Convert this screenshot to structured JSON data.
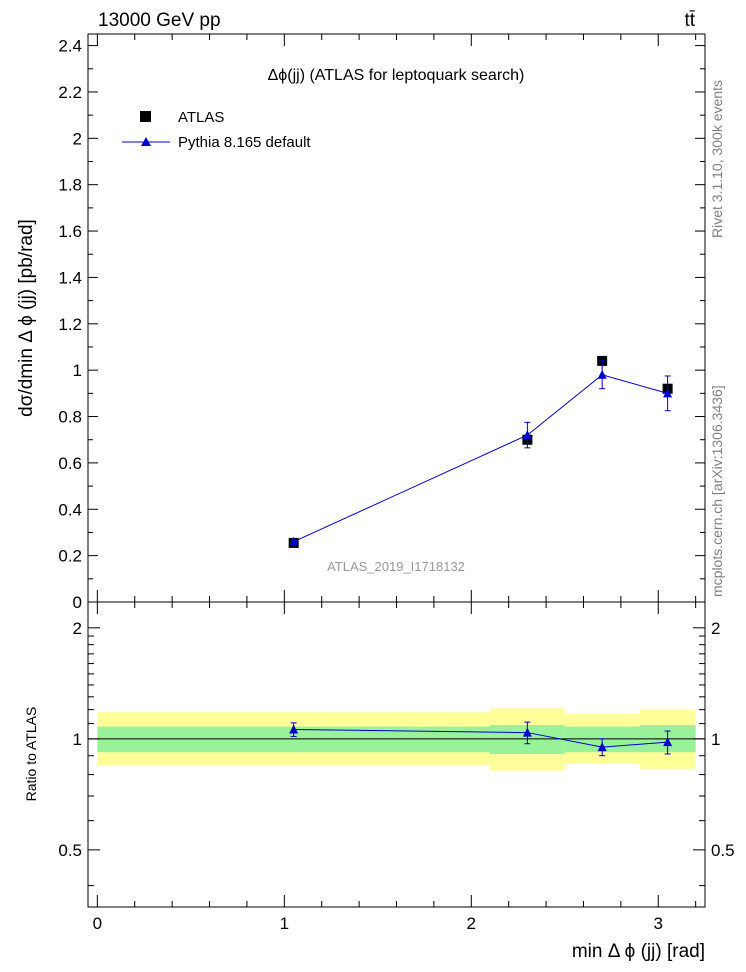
{
  "header": {
    "energy_label": "13000 GeV pp",
    "process_label": "tt̄"
  },
  "side_labels": {
    "rivet": "Rivet 3.1.10,  300k events",
    "mcplots": "mcplots.cern.ch [arXiv:1306.3436]"
  },
  "chart_data": [
    {
      "type": "scatter",
      "title": "Δϕ(jj) (ATLAS for leptoquark search)",
      "ylabel": "dσ/dmin Δ ϕ (jj) [pb/rad]",
      "xlabel": "",
      "xlim": [
        -0.05,
        3.25
      ],
      "ylim": [
        0,
        2.45
      ],
      "yticks": [
        {
          "value": 0,
          "label": "0"
        },
        {
          "value": 0.2,
          "label": "0.2"
        },
        {
          "value": 0.4,
          "label": "0.4"
        },
        {
          "value": 0.6,
          "label": "0.6"
        },
        {
          "value": 0.8,
          "label": "0.8"
        },
        {
          "value": 1.0,
          "label": "1"
        },
        {
          "value": 1.2,
          "label": "1.2"
        },
        {
          "value": 1.4,
          "label": "1.4"
        },
        {
          "value": 1.6,
          "label": "1.6"
        },
        {
          "value": 1.8,
          "label": "1.8"
        },
        {
          "value": 2.0,
          "label": "2"
        },
        {
          "value": 2.2,
          "label": "2.2"
        },
        {
          "value": 2.4,
          "label": "2.4"
        }
      ],
      "legend": {
        "placement": "top-left",
        "entries": [
          {
            "name": "ATLAS",
            "marker": "square",
            "color": "#000000"
          },
          {
            "name": "Pythia 8.165 default",
            "marker": "triangle",
            "color": "#0000cc"
          }
        ]
      },
      "watermark": "ATLAS_2019_I1718132",
      "series": [
        {
          "name": "ATLAS",
          "color": "#000000",
          "points": [
            {
              "x": 1.05,
              "y": 0.255,
              "yerr": 0.012
            },
            {
              "x": 2.3,
              "y": 0.7,
              "yerr": 0.025
            },
            {
              "x": 2.7,
              "y": 1.04,
              "yerr": 0.015
            },
            {
              "x": 3.05,
              "y": 0.92,
              "yerr": 0.02
            }
          ]
        },
        {
          "name": "Pythia 8.165 default",
          "color": "#0000cc",
          "points": [
            {
              "x": 1.05,
              "y": 0.26,
              "yerr": 0.01
            },
            {
              "x": 2.3,
              "y": 0.72,
              "yerr": 0.055
            },
            {
              "x": 2.7,
              "y": 0.98,
              "yerr": 0.06
            },
            {
              "x": 3.05,
              "y": 0.9,
              "yerr": 0.075
            }
          ]
        }
      ]
    },
    {
      "type": "scatter",
      "title": "",
      "ylabel": "Ratio to ATLAS",
      "xlabel": "min Δ ϕ (jj) [rad]",
      "xlim": [
        -0.05,
        3.25
      ],
      "ylim": [
        0.35,
        2.35
      ],
      "log_y": true,
      "yticks": [
        {
          "value": 0.5,
          "label": "0.5"
        },
        {
          "value": 1,
          "label": "1"
        },
        {
          "value": 2,
          "label": "2"
        }
      ],
      "xticks": [
        {
          "value": 0,
          "label": "0"
        },
        {
          "value": 1,
          "label": "1"
        },
        {
          "value": 2,
          "label": "2"
        },
        {
          "value": 3,
          "label": "3"
        }
      ],
      "bands": {
        "inner_color": "#99f299",
        "outer_color": "#ffff99",
        "bins": [
          {
            "x_lo": 0.0,
            "x_hi": 2.1,
            "inner": [
              0.92,
              1.08
            ],
            "outer": [
              0.85,
              1.18
            ]
          },
          {
            "x_lo": 2.1,
            "x_hi": 2.5,
            "inner": [
              0.91,
              1.09
            ],
            "outer": [
              0.82,
              1.21
            ]
          },
          {
            "x_lo": 2.5,
            "x_hi": 2.9,
            "inner": [
              0.92,
              1.08
            ],
            "outer": [
              0.86,
              1.17
            ]
          },
          {
            "x_lo": 2.9,
            "x_hi": 3.2,
            "inner": [
              0.92,
              1.09
            ],
            "outer": [
              0.83,
              1.2
            ]
          }
        ]
      },
      "series": [
        {
          "name": "Pythia 8.165 default",
          "color": "#0000cc",
          "points": [
            {
              "x": 1.05,
              "y": 1.06,
              "yerr": 0.045
            },
            {
              "x": 2.3,
              "y": 1.04,
              "yerr": 0.07
            },
            {
              "x": 2.7,
              "y": 0.95,
              "yerr": 0.05
            },
            {
              "x": 3.05,
              "y": 0.98,
              "yerr": 0.07
            }
          ]
        }
      ]
    }
  ]
}
